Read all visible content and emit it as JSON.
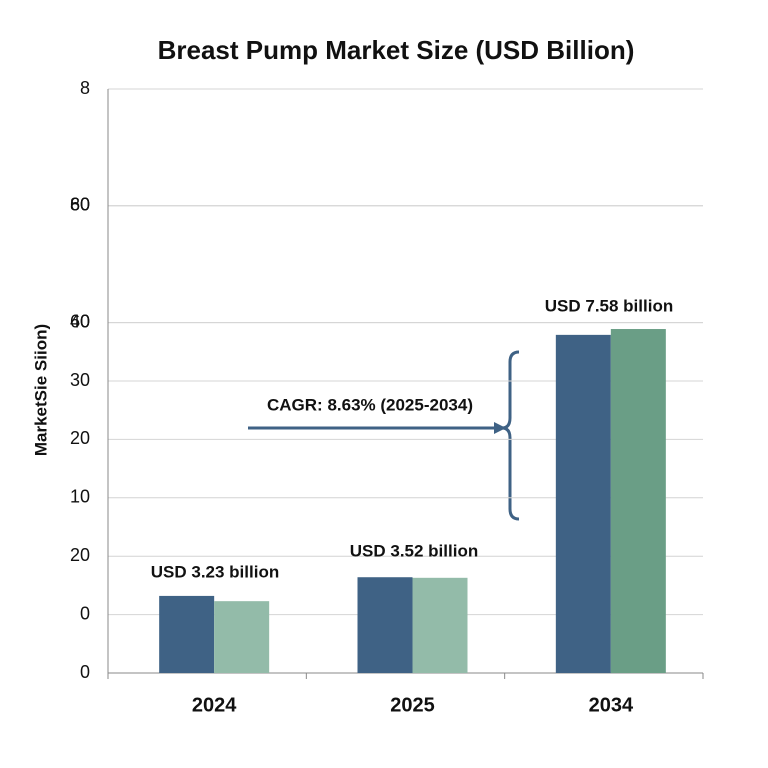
{
  "chart_data": {
    "type": "bar",
    "title": "Breast Pump Market Size (USD Billion)",
    "y_label": "MarketSie Siion)",
    "categories": [
      "2024",
      "2025",
      "2034"
    ],
    "series": [
      {
        "color": "#3f6285",
        "values": [
          13.2,
          16.4,
          57.9
        ]
      },
      {
        "colors": [
          "#93bba9",
          "#93bba9",
          "#6a9e86"
        ],
        "values": [
          12.3,
          16.3,
          58.9
        ]
      }
    ],
    "ylim": [
      0,
      100
    ],
    "yticks": [
      0,
      {
        "value": 10,
        "label": "0"
      },
      20,
      {
        "value": 30,
        "label": "10"
      },
      {
        "value": 40,
        "label": "20"
      },
      {
        "value": 50,
        "label": "30"
      },
      {
        "value": 60,
        "label": "40"
      },
      60,
      {
        "value": 80,
        "label": "60"
      },
      80,
      {
        "value": 100,
        "label": "8"
      }
    ],
    "grid": true,
    "annotations": [
      "USD 3.23 billion",
      "USD 3.52 billion",
      "USD 7.58 billion",
      "CAGR: 8.63% (2025-2034)"
    ]
  }
}
